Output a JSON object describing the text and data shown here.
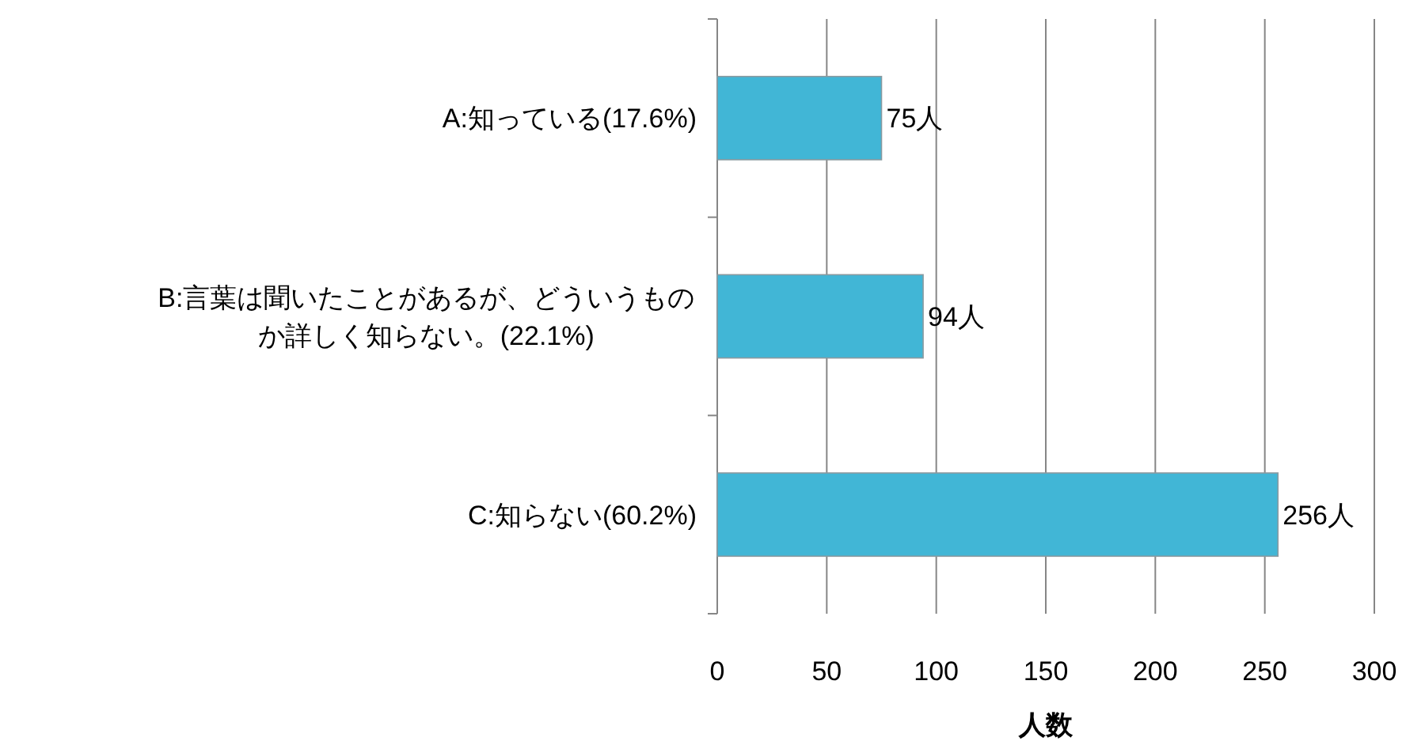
{
  "chart_data": {
    "type": "bar",
    "orientation": "horizontal",
    "categories": [
      "A:知っている(17.6%)",
      "B:言葉は聞いたことがあるが、どういうものか詳しく知らない。(22.1%)",
      "C:知らない(60.2%)"
    ],
    "values": [
      75,
      94,
      256
    ],
    "value_labels": [
      "75人",
      "94人",
      "256人"
    ],
    "color": "#41b6d6",
    "xlim": [
      0,
      300
    ],
    "xticks": [
      0,
      50,
      100,
      150,
      200,
      250,
      300
    ],
    "grid": "x",
    "xlabel": "人数"
  }
}
